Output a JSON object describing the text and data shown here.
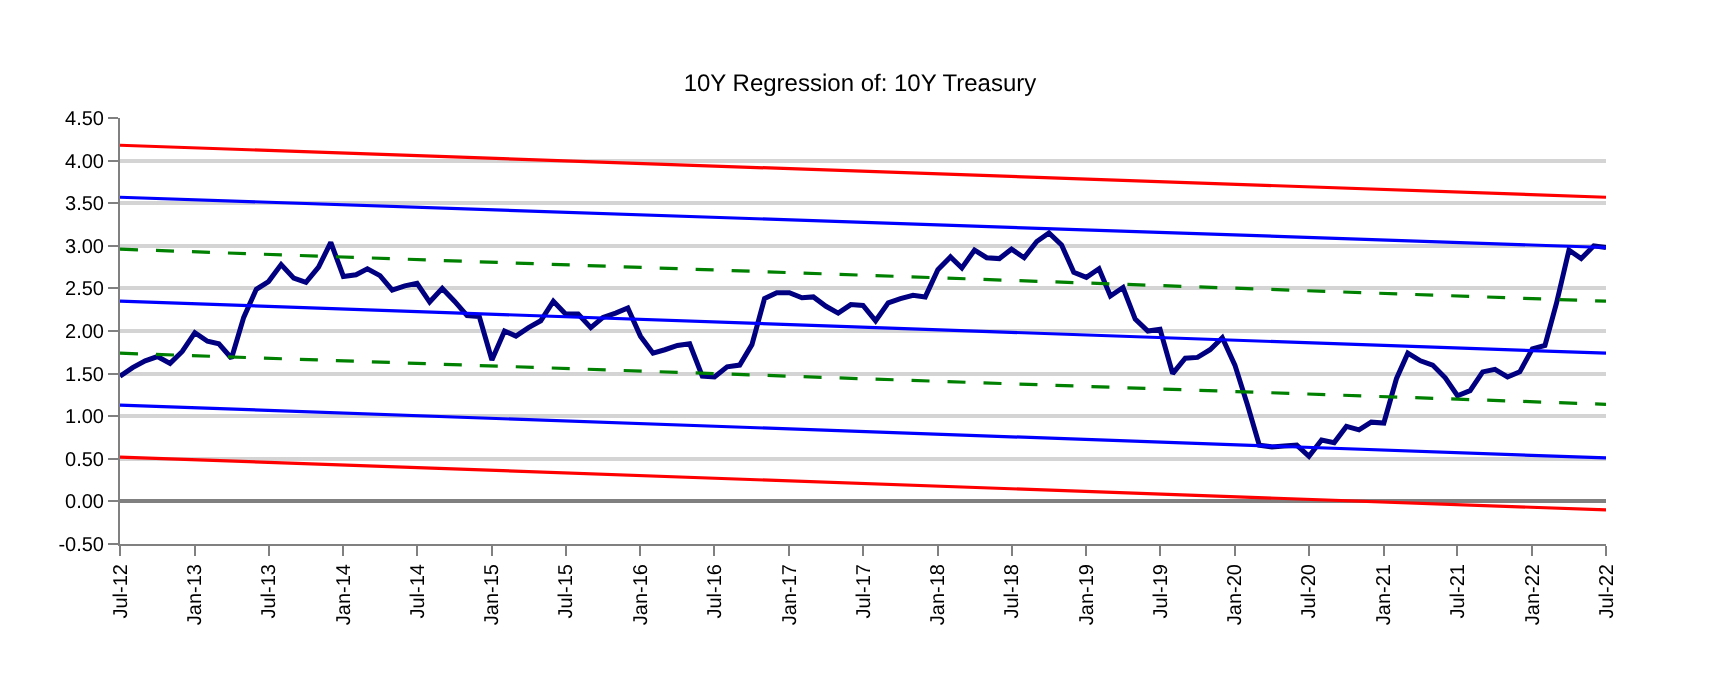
{
  "chart_data": {
    "type": "line",
    "title": "10Y Regression of: 10Y Treasury",
    "x": [
      "2012-07",
      "2012-08",
      "2012-09",
      "2012-10",
      "2012-11",
      "2012-12",
      "2013-01",
      "2013-02",
      "2013-03",
      "2013-04",
      "2013-05",
      "2013-06",
      "2013-07",
      "2013-08",
      "2013-09",
      "2013-10",
      "2013-11",
      "2013-12",
      "2014-01",
      "2014-02",
      "2014-03",
      "2014-04",
      "2014-05",
      "2014-06",
      "2014-07",
      "2014-08",
      "2014-09",
      "2014-10",
      "2014-11",
      "2014-12",
      "2015-01",
      "2015-02",
      "2015-03",
      "2015-04",
      "2015-05",
      "2015-06",
      "2015-07",
      "2015-08",
      "2015-09",
      "2015-10",
      "2015-11",
      "2015-12",
      "2016-01",
      "2016-02",
      "2016-03",
      "2016-04",
      "2016-05",
      "2016-06",
      "2016-07",
      "2016-08",
      "2016-09",
      "2016-10",
      "2016-11",
      "2016-12",
      "2017-01",
      "2017-02",
      "2017-03",
      "2017-04",
      "2017-05",
      "2017-06",
      "2017-07",
      "2017-08",
      "2017-09",
      "2017-10",
      "2017-11",
      "2017-12",
      "2018-01",
      "2018-02",
      "2018-03",
      "2018-04",
      "2018-05",
      "2018-06",
      "2018-07",
      "2018-08",
      "2018-09",
      "2018-10",
      "2018-11",
      "2018-12",
      "2019-01",
      "2019-02",
      "2019-03",
      "2019-04",
      "2019-05",
      "2019-06",
      "2019-07",
      "2019-08",
      "2019-09",
      "2019-10",
      "2019-11",
      "2019-12",
      "2020-01",
      "2020-02",
      "2020-03",
      "2020-04",
      "2020-05",
      "2020-06",
      "2020-07",
      "2020-08",
      "2020-09",
      "2020-10",
      "2020-11",
      "2020-12",
      "2021-01",
      "2021-02",
      "2021-03",
      "2021-04",
      "2021-05",
      "2021-06",
      "2021-07",
      "2021-08",
      "2021-09",
      "2021-10",
      "2021-11",
      "2021-12",
      "2022-01",
      "2022-02",
      "2022-03",
      "2022-04",
      "2022-05",
      "2022-06",
      "2022-07"
    ],
    "series": [
      {
        "color": "#000080",
        "line_style": "solid",
        "values": [
          1.47,
          1.57,
          1.65,
          1.7,
          1.62,
          1.76,
          1.98,
          1.88,
          1.85,
          1.68,
          2.16,
          2.49,
          2.58,
          2.78,
          2.62,
          2.57,
          2.75,
          3.04,
          2.64,
          2.66,
          2.73,
          2.65,
          2.48,
          2.53,
          2.56,
          2.34,
          2.5,
          2.35,
          2.18,
          2.17,
          1.66,
          2.0,
          1.94,
          2.04,
          2.12,
          2.35,
          2.2,
          2.2,
          2.04,
          2.16,
          2.21,
          2.27,
          1.94,
          1.74,
          1.78,
          1.83,
          1.85,
          1.47,
          1.46,
          1.58,
          1.6,
          1.84,
          2.38,
          2.45,
          2.45,
          2.39,
          2.4,
          2.29,
          2.21,
          2.31,
          2.3,
          2.12,
          2.33,
          2.38,
          2.42,
          2.4,
          2.72,
          2.87,
          2.74,
          2.95,
          2.86,
          2.85,
          2.96,
          2.86,
          3.05,
          3.15,
          3.01,
          2.69,
          2.63,
          2.73,
          2.41,
          2.51,
          2.14,
          2.0,
          2.02,
          1.5,
          1.68,
          1.69,
          1.78,
          1.92,
          1.6,
          1.13,
          0.66,
          0.64,
          0.65,
          0.66,
          0.53,
          0.72,
          0.69,
          0.88,
          0.84,
          0.93,
          0.92,
          1.44,
          1.74,
          1.65,
          1.6,
          1.45,
          1.24,
          1.3,
          1.52,
          1.55,
          1.46,
          1.52,
          1.79,
          1.83,
          2.32,
          2.95,
          2.85,
          3.0,
          2.98
        ]
      },
      {
        "color": "#ff0000",
        "line_style": "solid",
        "x": [
          "2012-07",
          "2022-07"
        ],
        "values": [
          4.18,
          3.57
        ]
      },
      {
        "color": "#0000ff",
        "line_style": "solid",
        "x": [
          "2012-07",
          "2022-07"
        ],
        "values": [
          3.57,
          2.98
        ]
      },
      {
        "color": "#008000",
        "line_style": "dashed",
        "x": [
          "2012-07",
          "2022-07"
        ],
        "values": [
          2.96,
          2.35
        ]
      },
      {
        "color": "#0000ff",
        "line_style": "solid",
        "x": [
          "2012-07",
          "2022-07"
        ],
        "values": [
          2.35,
          1.74
        ]
      },
      {
        "color": "#008000",
        "line_style": "dashed",
        "x": [
          "2012-07",
          "2022-07"
        ],
        "values": [
          1.74,
          1.14
        ]
      },
      {
        "color": "#0000ff",
        "line_style": "solid",
        "x": [
          "2012-07",
          "2022-07"
        ],
        "values": [
          1.13,
          0.51
        ]
      },
      {
        "color": "#ff0000",
        "line_style": "solid",
        "x": [
          "2012-07",
          "2022-07"
        ],
        "values": [
          0.52,
          -0.1
        ]
      }
    ],
    "xlim": [
      "2012-07",
      "2022-07"
    ],
    "xticks": [
      {
        "value": "2012-07",
        "label": "Jul-12"
      },
      {
        "value": "2013-01",
        "label": "Jan-13"
      },
      {
        "value": "2013-07",
        "label": "Jul-13"
      },
      {
        "value": "2014-01",
        "label": "Jan-14"
      },
      {
        "value": "2014-07",
        "label": "Jul-14"
      },
      {
        "value": "2015-01",
        "label": "Jan-15"
      },
      {
        "value": "2015-07",
        "label": "Jul-15"
      },
      {
        "value": "2016-01",
        "label": "Jan-16"
      },
      {
        "value": "2016-07",
        "label": "Jul-16"
      },
      {
        "value": "2017-01",
        "label": "Jan-17"
      },
      {
        "value": "2017-07",
        "label": "Jul-17"
      },
      {
        "value": "2018-01",
        "label": "Jan-18"
      },
      {
        "value": "2018-07",
        "label": "Jul-18"
      },
      {
        "value": "2019-01",
        "label": "Jan-19"
      },
      {
        "value": "2019-07",
        "label": "Jul-19"
      },
      {
        "value": "2020-01",
        "label": "Jan-20"
      },
      {
        "value": "2020-07",
        "label": "Jul-20"
      },
      {
        "value": "2021-01",
        "label": "Jan-21"
      },
      {
        "value": "2021-07",
        "label": "Jul-21"
      },
      {
        "value": "2022-01",
        "label": "Jan-22"
      },
      {
        "value": "2022-07",
        "label": "Jul-22"
      }
    ],
    "ylim": [
      -0.5,
      4.5
    ],
    "yticks": [
      {
        "value": -0.5,
        "label": "-0.50"
      },
      {
        "value": 0,
        "label": "0.00"
      },
      {
        "value": 0.5,
        "label": "0.50"
      },
      {
        "value": 1,
        "label": "1.00"
      },
      {
        "value": 1.5,
        "label": "1.50"
      },
      {
        "value": 2,
        "label": "2.00"
      },
      {
        "value": 2.5,
        "label": "2.50"
      },
      {
        "value": 3,
        "label": "3.00"
      },
      {
        "value": 3.5,
        "label": "3.50"
      },
      {
        "value": 4,
        "label": "4.00"
      },
      {
        "value": 4.5,
        "label": "4.50"
      }
    ],
    "grid": "y",
    "marker": "none"
  }
}
